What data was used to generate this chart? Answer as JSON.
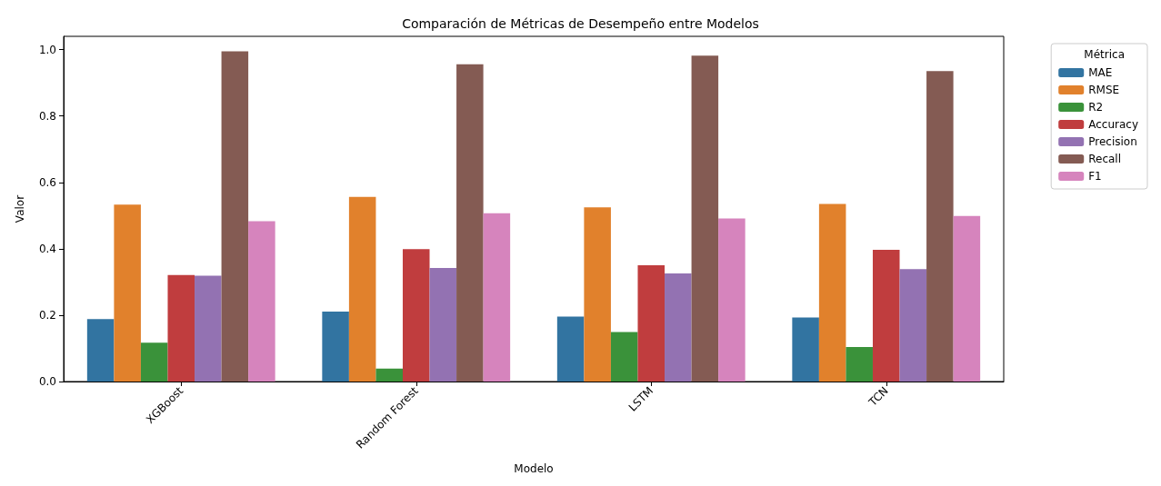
{
  "chart_data": {
    "type": "bar",
    "title": "Comparación de Métricas de Desempeño entre Modelos",
    "xlabel": "Modelo",
    "ylabel": "Valor",
    "legend_title": "Métrica",
    "categories": [
      "XGBoost",
      "Random Forest",
      "LSTM",
      "TCN"
    ],
    "series": [
      {
        "name": "MAE",
        "color": "#3274a1",
        "values": [
          0.188,
          0.211,
          0.196,
          0.193
        ]
      },
      {
        "name": "RMSE",
        "color": "#e1812c",
        "values": [
          0.533,
          0.556,
          0.525,
          0.535
        ]
      },
      {
        "name": "R2",
        "color": "#3a923a",
        "values": [
          0.117,
          0.039,
          0.149,
          0.104
        ]
      },
      {
        "name": "Accuracy",
        "color": "#c03d3e",
        "values": [
          0.321,
          0.399,
          0.35,
          0.397
        ]
      },
      {
        "name": "Precision",
        "color": "#9372b2",
        "values": [
          0.319,
          0.342,
          0.326,
          0.339
        ]
      },
      {
        "name": "Recall",
        "color": "#845b53",
        "values": [
          0.995,
          0.956,
          0.982,
          0.935
        ]
      },
      {
        "name": "F1",
        "color": "#d684bd",
        "values": [
          0.483,
          0.507,
          0.491,
          0.499
        ]
      }
    ],
    "ylim": [
      0,
      1.04
    ],
    "yticks": [
      {
        "value": 0,
        "label": "0.0"
      },
      0.2,
      0.4,
      0.6,
      0.8,
      {
        "value": 1,
        "label": "1.0"
      }
    ],
    "grid": false,
    "legend": "right"
  }
}
